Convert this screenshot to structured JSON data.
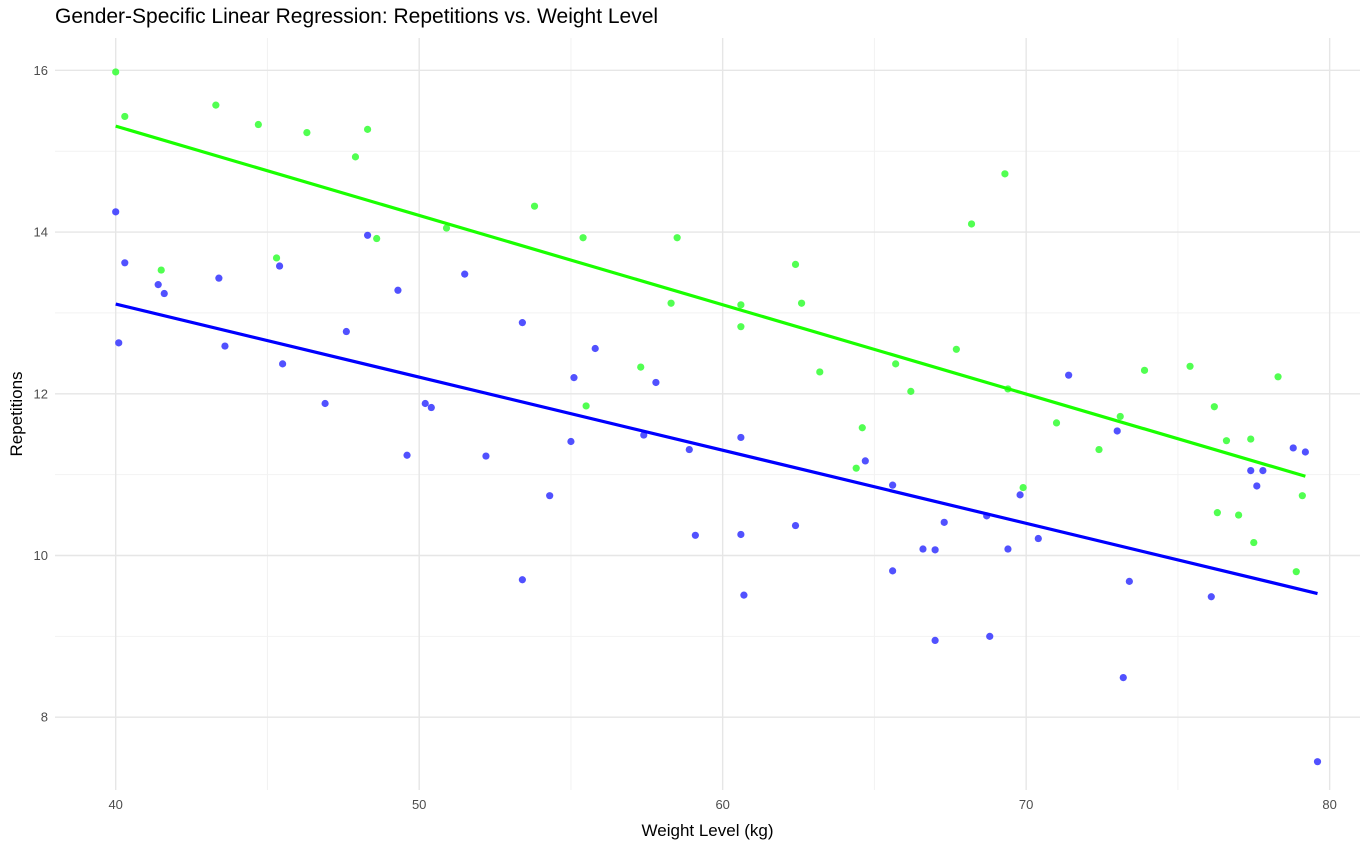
{
  "chart_data": {
    "type": "scatter",
    "title": "Gender-Specific Linear Regression: Repetitions vs. Weight Level",
    "xlabel": "Weight Level (kg)",
    "ylabel": "Repetitions",
    "xlim": [
      38,
      81
    ],
    "ylim": [
      7.1,
      16.4
    ],
    "xticks": [
      40,
      50,
      60,
      70,
      80
    ],
    "yticks": [
      8,
      10,
      12,
      14,
      16
    ],
    "grid": true,
    "legend": "none",
    "series": [
      {
        "color": "#33ff33",
        "line_color": "#1aff00",
        "points": [
          [
            40.0,
            15.98
          ],
          [
            40.3,
            15.43
          ],
          [
            41.5,
            13.53
          ],
          [
            43.3,
            15.57
          ],
          [
            44.7,
            15.33
          ],
          [
            45.3,
            13.68
          ],
          [
            46.3,
            15.23
          ],
          [
            47.9,
            14.93
          ],
          [
            48.3,
            15.27
          ],
          [
            48.6,
            13.92
          ],
          [
            50.9,
            14.05
          ],
          [
            53.8,
            14.32
          ],
          [
            55.4,
            13.93
          ],
          [
            55.5,
            11.85
          ],
          [
            57.3,
            12.33
          ],
          [
            58.3,
            13.12
          ],
          [
            58.5,
            13.93
          ],
          [
            60.6,
            13.1
          ],
          [
            60.6,
            12.83
          ],
          [
            62.4,
            13.6
          ],
          [
            62.6,
            13.12
          ],
          [
            63.2,
            12.27
          ],
          [
            64.4,
            11.08
          ],
          [
            64.6,
            11.58
          ],
          [
            65.7,
            12.37
          ],
          [
            66.2,
            12.03
          ],
          [
            67.7,
            12.55
          ],
          [
            68.2,
            14.1
          ],
          [
            69.3,
            14.72
          ],
          [
            69.4,
            12.06
          ],
          [
            69.9,
            10.84
          ],
          [
            71.0,
            11.64
          ],
          [
            72.4,
            11.31
          ],
          [
            73.1,
            11.72
          ],
          [
            73.9,
            12.29
          ],
          [
            75.4,
            12.34
          ],
          [
            76.2,
            11.84
          ],
          [
            76.3,
            10.53
          ],
          [
            76.6,
            11.42
          ],
          [
            77.0,
            10.5
          ],
          [
            77.4,
            11.44
          ],
          [
            77.5,
            10.16
          ],
          [
            78.3,
            12.21
          ],
          [
            78.9,
            9.8
          ],
          [
            79.1,
            10.74
          ]
        ],
        "fit": [
          [
            40.0,
            15.31
          ],
          [
            79.2,
            10.98
          ]
        ]
      },
      {
        "color": "#3333ff",
        "line_color": "#0000ff",
        "points": [
          [
            40.0,
            14.25
          ],
          [
            40.1,
            12.63
          ],
          [
            40.3,
            13.62
          ],
          [
            41.4,
            13.35
          ],
          [
            41.6,
            13.24
          ],
          [
            43.4,
            13.43
          ],
          [
            43.6,
            12.59
          ],
          [
            45.4,
            13.58
          ],
          [
            45.5,
            12.37
          ],
          [
            46.9,
            11.88
          ],
          [
            47.6,
            12.77
          ],
          [
            48.3,
            13.96
          ],
          [
            49.3,
            13.28
          ],
          [
            49.6,
            11.24
          ],
          [
            50.2,
            11.88
          ],
          [
            50.4,
            11.83
          ],
          [
            51.5,
            13.48
          ],
          [
            52.2,
            11.23
          ],
          [
            53.4,
            12.88
          ],
          [
            53.4,
            9.7
          ],
          [
            54.3,
            10.74
          ],
          [
            55.0,
            11.41
          ],
          [
            55.1,
            12.2
          ],
          [
            55.8,
            12.56
          ],
          [
            57.4,
            11.49
          ],
          [
            57.8,
            12.14
          ],
          [
            58.9,
            11.31
          ],
          [
            59.1,
            10.25
          ],
          [
            60.6,
            11.46
          ],
          [
            60.6,
            10.26
          ],
          [
            60.7,
            9.51
          ],
          [
            62.4,
            10.37
          ],
          [
            64.7,
            11.17
          ],
          [
            65.6,
            10.87
          ],
          [
            65.6,
            9.81
          ],
          [
            66.6,
            10.08
          ],
          [
            67.0,
            10.07
          ],
          [
            67.0,
            8.95
          ],
          [
            67.3,
            10.41
          ],
          [
            68.7,
            10.49
          ],
          [
            68.8,
            9.0
          ],
          [
            69.4,
            10.08
          ],
          [
            69.8,
            10.75
          ],
          [
            70.4,
            10.21
          ],
          [
            71.4,
            12.23
          ],
          [
            73.0,
            11.54
          ],
          [
            73.2,
            8.49
          ],
          [
            73.4,
            9.68
          ],
          [
            76.1,
            9.49
          ],
          [
            77.4,
            11.05
          ],
          [
            77.6,
            10.86
          ],
          [
            77.8,
            11.05
          ],
          [
            78.8,
            11.33
          ],
          [
            79.2,
            11.28
          ],
          [
            79.6,
            7.45
          ]
        ],
        "fit": [
          [
            40.0,
            13.11
          ],
          [
            79.6,
            9.53
          ]
        ]
      }
    ]
  }
}
